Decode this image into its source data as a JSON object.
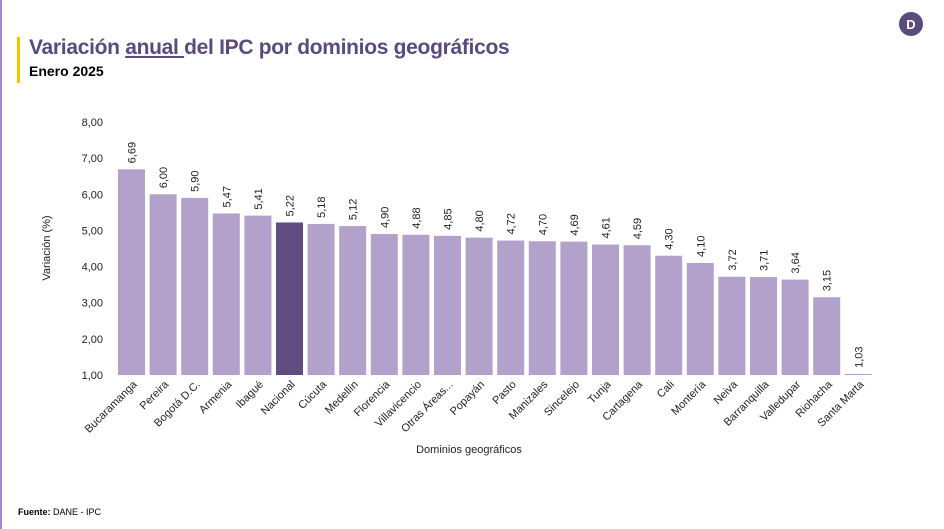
{
  "header": {
    "title_part1": "Variación ",
    "title_underlined": "anual ",
    "title_part2": "del IPC por dominios geográficos",
    "subtitle": "Enero 2025",
    "logo_letter": "D"
  },
  "footer": {
    "source_label": "Fuente:",
    "source_text": " DANE - IPC"
  },
  "colors": {
    "bar": "#b2a1ca",
    "highlight": "#614c82",
    "title": "#5b4a7e",
    "accent": "#f2c500"
  },
  "chart_data": {
    "type": "bar",
    "xlabel": "Dominios geográficos",
    "ylabel": "Variación (%)",
    "ylim": [
      1,
      8
    ],
    "yticks": [
      "1,00",
      "2,00",
      "3,00",
      "4,00",
      "5,00",
      "6,00",
      "7,00",
      "8,00"
    ],
    "grid": false,
    "highlight_category": "Nacional",
    "categories": [
      "Bucaramanga",
      "Pereira",
      "Bogotá D.C.",
      "Armenia",
      "Ibagué",
      "Nacional",
      "Cúcuta",
      "Medellín",
      "Florencia",
      "Villavicencio",
      "Otras Áreas...",
      "Popayán",
      "Pasto",
      "Manizales",
      "Sincelejo",
      "Tunja",
      "Cartagena",
      "Cali",
      "Montería",
      "Neiva",
      "Barranquilla",
      "Valledupar",
      "Riohacha",
      "Santa Marta"
    ],
    "values": [
      6.69,
      6.0,
      5.9,
      5.47,
      5.41,
      5.22,
      5.18,
      5.12,
      4.9,
      4.88,
      4.85,
      4.8,
      4.72,
      4.7,
      4.69,
      4.61,
      4.59,
      4.3,
      4.1,
      3.72,
      3.71,
      3.64,
      3.15,
      1.03
    ],
    "value_labels": [
      "6,69",
      "6,00",
      "5,90",
      "5,47",
      "5,41",
      "5,22",
      "5,18",
      "5,12",
      "4,90",
      "4,88",
      "4,85",
      "4,80",
      "4,72",
      "4,70",
      "4,69",
      "4,61",
      "4,59",
      "4,30",
      "4,10",
      "3,72",
      "3,71",
      "3,64",
      "3,15",
      "1,03"
    ]
  }
}
